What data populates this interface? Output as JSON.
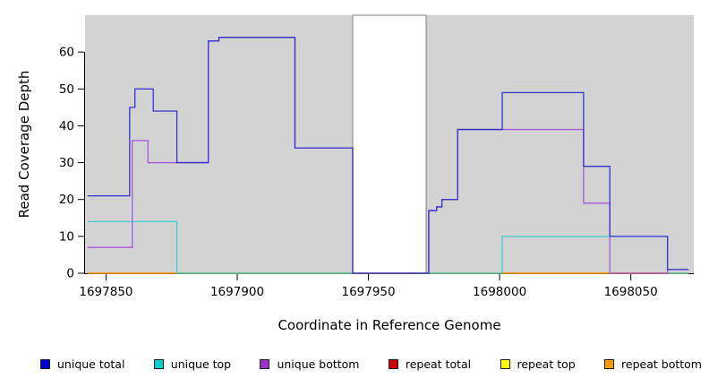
{
  "figure": {
    "background": "#ffffff"
  },
  "chart_data": {
    "type": "line",
    "subtype": "step",
    "title": "",
    "xlabel": "Coordinate in Reference Genome",
    "ylabel": "Read Coverage Depth",
    "x_range": [
      1697842,
      1698074
    ],
    "y_range": [
      0,
      70
    ],
    "x_ticks": [
      1697850,
      1697900,
      1697950,
      1698000,
      1698050
    ],
    "y_ticks": [
      0,
      10,
      20,
      30,
      40,
      50,
      60
    ],
    "panel_background": "#d3d3d3",
    "grid": false,
    "legend_position": "bottom",
    "no_data_region": {
      "x_start": 1697944,
      "x_end": 1697972,
      "fill": "#ffffff",
      "border": "#808080"
    },
    "series": [
      {
        "name": "repeat total",
        "color": "#cc0000",
        "points": [
          [
            1697843,
            0
          ],
          [
            1698072,
            0
          ]
        ]
      },
      {
        "name": "repeat top",
        "color": "#eeee00",
        "points": [
          [
            1697843,
            0
          ],
          [
            1698072,
            0
          ]
        ]
      },
      {
        "name": "repeat bottom",
        "color": "#ff9900",
        "points": [
          [
            1697843,
            0
          ],
          [
            1698072,
            0
          ]
        ]
      },
      {
        "name": "unique top",
        "color": "#40d0d0",
        "points": [
          [
            1697843,
            14
          ],
          [
            1697877,
            0
          ],
          [
            1698001,
            10
          ],
          [
            1698064,
            0
          ],
          [
            1698072,
            0
          ]
        ]
      },
      {
        "name": "unique bottom",
        "color": "#a858d8",
        "points": [
          [
            1697843,
            7
          ],
          [
            1697860,
            36
          ],
          [
            1697866,
            30
          ],
          [
            1697889,
            63
          ],
          [
            1697893,
            64
          ],
          [
            1697922,
            34
          ],
          [
            1697944,
            0
          ],
          [
            1697973,
            17
          ],
          [
            1697976,
            18
          ],
          [
            1697978,
            20
          ],
          [
            1697984,
            39
          ],
          [
            1698032,
            19
          ],
          [
            1698042,
            0
          ],
          [
            1698064,
            1
          ],
          [
            1698072,
            1
          ]
        ]
      },
      {
        "name": "unique total",
        "color": "#3333cc",
        "points": [
          [
            1697843,
            21
          ],
          [
            1697859,
            45
          ],
          [
            1697861,
            50
          ],
          [
            1697868,
            44
          ],
          [
            1697877,
            30
          ],
          [
            1697889,
            63
          ],
          [
            1697893,
            64
          ],
          [
            1697922,
            34
          ],
          [
            1697944,
            0
          ],
          [
            1697973,
            17
          ],
          [
            1697976,
            18
          ],
          [
            1697978,
            20
          ],
          [
            1697984,
            39
          ],
          [
            1698001,
            49
          ],
          [
            1698032,
            29
          ],
          [
            1698042,
            10
          ],
          [
            1698064,
            1
          ],
          [
            1698072,
            1
          ]
        ]
      }
    ]
  },
  "legend": {
    "items": [
      {
        "label": "unique total",
        "color": "#0000cc"
      },
      {
        "label": "unique top",
        "color": "#00cccc"
      },
      {
        "label": "unique bottom",
        "color": "#9933cc"
      },
      {
        "label": "repeat total",
        "color": "#cc0000"
      },
      {
        "label": "repeat top",
        "color": "#ffff00"
      },
      {
        "label": "repeat bottom",
        "color": "#ff9900"
      }
    ]
  }
}
